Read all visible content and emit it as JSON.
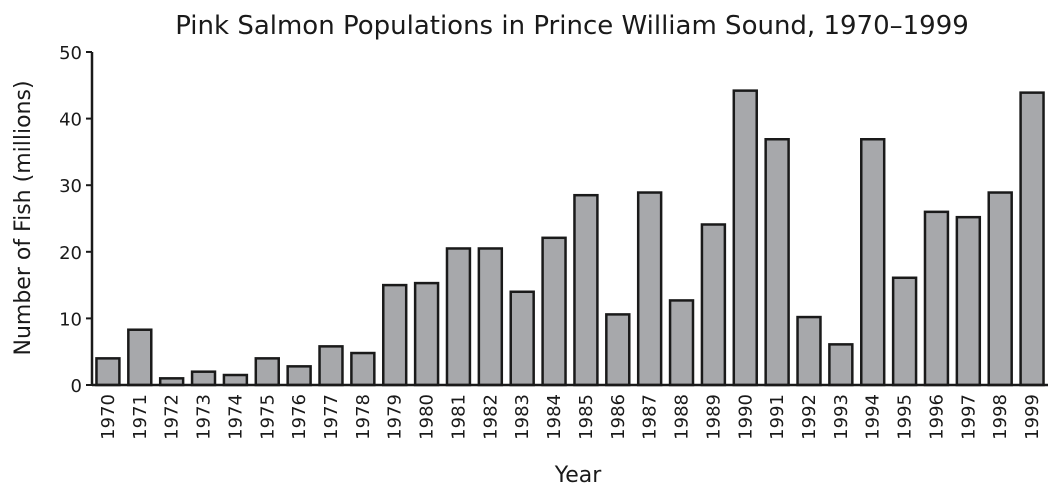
{
  "chart_data": {
    "type": "bar",
    "title": "Pink Salmon Populations in Prince William Sound, 1970–1999",
    "xlabel": "Year",
    "ylabel": "Number of Fish (millions)",
    "ylim": [
      0,
      50
    ],
    "yticks": [
      0,
      10,
      20,
      30,
      40,
      50
    ],
    "grid": false,
    "bar_color": "#a7a8ab",
    "categories": [
      "1970",
      "1971",
      "1972",
      "1973",
      "1974",
      "1975",
      "1976",
      "1977",
      "1978",
      "1979",
      "1980",
      "1981",
      "1982",
      "1983",
      "1984",
      "1985",
      "1986",
      "1987",
      "1988",
      "1989",
      "1990",
      "1991",
      "1992",
      "1993",
      "1994",
      "1995",
      "1996",
      "1997",
      "1998",
      "1999"
    ],
    "values": [
      4,
      8.3,
      1,
      2,
      1.5,
      4,
      2.8,
      5.8,
      4.8,
      15,
      15.3,
      20.5,
      20.5,
      14,
      22.1,
      28.5,
      10.6,
      28.9,
      12.7,
      24.1,
      44.2,
      36.9,
      10.2,
      6.1,
      36.9,
      16.1,
      26,
      25.2,
      28.9,
      43.9
    ]
  }
}
